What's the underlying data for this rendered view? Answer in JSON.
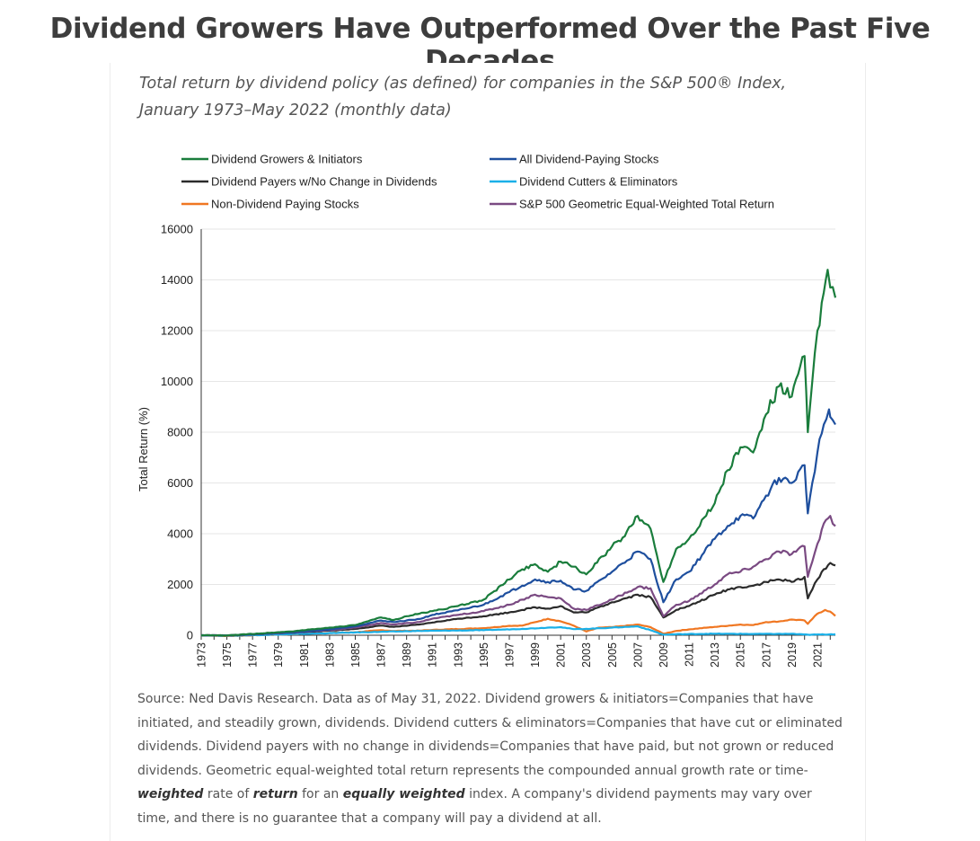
{
  "headline": "Dividend Growers Have Outperformed Over the Past Five Decades",
  "subtitle": "Total return by dividend policy (as defined) for companies in the S&P 500® Index, January 1973–May 2022 (monthly data)",
  "chart_data": {
    "type": "line",
    "title": "",
    "xlabel": "",
    "ylabel": "Total Return (%)",
    "xlim": [
      1973,
      2022.4
    ],
    "ylim": [
      0,
      16000
    ],
    "y_ticks": [
      0,
      2000,
      4000,
      6000,
      8000,
      10000,
      12000,
      14000,
      16000
    ],
    "x_ticks": [
      1973,
      1975,
      1977,
      1979,
      1981,
      1983,
      1985,
      1987,
      1989,
      1991,
      1993,
      1995,
      1997,
      1999,
      2001,
      2003,
      2005,
      2007,
      2009,
      2011,
      2013,
      2015,
      2017,
      2019,
      2021
    ],
    "grid": "horizontal",
    "legend": "top",
    "series": [
      {
        "name": "Non-Dividend Paying Stocks",
        "color": "#f07722",
        "points": [
          [
            1973,
            0
          ],
          [
            1975,
            -30
          ],
          [
            1980,
            40
          ],
          [
            1985,
            120
          ],
          [
            1987,
            200
          ],
          [
            1988,
            170
          ],
          [
            1990,
            180
          ],
          [
            1991,
            210
          ],
          [
            1995,
            280
          ],
          [
            1997,
            370
          ],
          [
            1998,
            380
          ],
          [
            2000,
            650
          ],
          [
            2001,
            550
          ],
          [
            2002,
            380
          ],
          [
            2003,
            150
          ],
          [
            2004,
            300
          ],
          [
            2005,
            320
          ],
          [
            2007,
            420
          ],
          [
            2008,
            320
          ],
          [
            2009,
            60
          ],
          [
            2010,
            170
          ],
          [
            2011,
            230
          ],
          [
            2013,
            330
          ],
          [
            2015,
            420
          ],
          [
            2016,
            400
          ],
          [
            2017,
            520
          ],
          [
            2018,
            540
          ],
          [
            2019,
            620
          ],
          [
            2020,
            580
          ],
          [
            2020.25,
            450
          ],
          [
            2020.6,
            640
          ],
          [
            2021,
            850
          ],
          [
            2021.6,
            1000
          ],
          [
            2022,
            930
          ],
          [
            2022.4,
            760
          ]
        ]
      },
      {
        "name": "Dividend Cutters & Eliminators",
        "color": "#1ab0e8",
        "points": [
          [
            1973,
            0
          ],
          [
            1975,
            -20
          ],
          [
            1980,
            40
          ],
          [
            1985,
            110
          ],
          [
            1990,
            170
          ],
          [
            1995,
            200
          ],
          [
            1998,
            250
          ],
          [
            2000,
            300
          ],
          [
            2001,
            320
          ],
          [
            2002,
            240
          ],
          [
            2003,
            250
          ],
          [
            2005,
            300
          ],
          [
            2007,
            350
          ],
          [
            2008,
            200
          ],
          [
            2009,
            20
          ],
          [
            2010,
            40
          ],
          [
            2013,
            60
          ],
          [
            2016,
            50
          ],
          [
            2019,
            55
          ],
          [
            2020.25,
            20
          ],
          [
            2022.4,
            40
          ]
        ]
      },
      {
        "name": "Dividend Payers w/No Change in Dividends",
        "color": "#2b2b2b",
        "points": [
          [
            1973,
            0
          ],
          [
            1975,
            -10
          ],
          [
            1980,
            100
          ],
          [
            1983,
            180
          ],
          [
            1985,
            250
          ],
          [
            1987,
            380
          ],
          [
            1988,
            330
          ],
          [
            1990,
            420
          ],
          [
            1991,
            500
          ],
          [
            1993,
            650
          ],
          [
            1995,
            750
          ],
          [
            1997,
            900
          ],
          [
            1998,
            1000
          ],
          [
            1999,
            1100
          ],
          [
            2000,
            1050
          ],
          [
            2001,
            1150
          ],
          [
            2002,
            900
          ],
          [
            2003,
            900
          ],
          [
            2005,
            1300
          ],
          [
            2007,
            1600
          ],
          [
            2008,
            1500
          ],
          [
            2009,
            700
          ],
          [
            2010,
            1000
          ],
          [
            2011,
            1150
          ],
          [
            2013,
            1600
          ],
          [
            2014,
            1800
          ],
          [
            2015,
            1900
          ],
          [
            2016,
            1950
          ],
          [
            2017,
            2100
          ],
          [
            2018,
            2200
          ],
          [
            2019,
            2100
          ],
          [
            2020,
            2300
          ],
          [
            2020.25,
            1450
          ],
          [
            2020.6,
            1800
          ],
          [
            2021,
            2200
          ],
          [
            2021.5,
            2600
          ],
          [
            2022,
            2850
          ],
          [
            2022.4,
            2750
          ]
        ]
      },
      {
        "name": "S&P 500 Geometric Equal-Weighted Total Return",
        "color": "#7a4a82",
        "points": [
          [
            1973,
            0
          ],
          [
            1975,
            -10
          ],
          [
            1980,
            100
          ],
          [
            1983,
            200
          ],
          [
            1985,
            300
          ],
          [
            1987,
            480
          ],
          [
            1988,
            420
          ],
          [
            1990,
            520
          ],
          [
            1991,
            650
          ],
          [
            1993,
            800
          ],
          [
            1995,
            950
          ],
          [
            1997,
            1200
          ],
          [
            1998,
            1400
          ],
          [
            1999,
            1600
          ],
          [
            2000,
            1500
          ],
          [
            2001,
            1450
          ],
          [
            2002,
            1050
          ],
          [
            2003,
            1000
          ],
          [
            2005,
            1400
          ],
          [
            2007,
            1900
          ],
          [
            2008,
            1850
          ],
          [
            2009,
            750
          ],
          [
            2010,
            1200
          ],
          [
            2011,
            1350
          ],
          [
            2013,
            2000
          ],
          [
            2014,
            2400
          ],
          [
            2015,
            2500
          ],
          [
            2016,
            2700
          ],
          [
            2017,
            3000
          ],
          [
            2018,
            3300
          ],
          [
            2019,
            3200
          ],
          [
            2020,
            3500
          ],
          [
            2020.25,
            2300
          ],
          [
            2020.6,
            2900
          ],
          [
            2021,
            3600
          ],
          [
            2021.5,
            4400
          ],
          [
            2022,
            4700
          ],
          [
            2022.4,
            4300
          ]
        ]
      },
      {
        "name": "All Dividend-Paying Stocks",
        "color": "#1e4f9e",
        "points": [
          [
            1973,
            0
          ],
          [
            1975,
            -10
          ],
          [
            1980,
            110
          ],
          [
            1983,
            230
          ],
          [
            1985,
            350
          ],
          [
            1987,
            580
          ],
          [
            1988,
            520
          ],
          [
            1990,
            640
          ],
          [
            1991,
            800
          ],
          [
            1993,
            980
          ],
          [
            1995,
            1200
          ],
          [
            1997,
            1700
          ],
          [
            1998,
            1950
          ],
          [
            1999,
            2200
          ],
          [
            2000,
            2100
          ],
          [
            2001,
            2150
          ],
          [
            2002,
            1800
          ],
          [
            2003,
            1750
          ],
          [
            2005,
            2500
          ],
          [
            2007,
            3300
          ],
          [
            2008,
            3000
          ],
          [
            2009,
            1300
          ],
          [
            2010,
            2200
          ],
          [
            2011,
            2500
          ],
          [
            2013,
            3800
          ],
          [
            2014,
            4300
          ],
          [
            2015,
            4700
          ],
          [
            2016,
            4600
          ],
          [
            2017,
            5500
          ],
          [
            2018,
            6200
          ],
          [
            2019,
            6000
          ],
          [
            2020,
            6700
          ],
          [
            2020.25,
            4800
          ],
          [
            2020.6,
            6000
          ],
          [
            2021,
            7200
          ],
          [
            2021.5,
            8300
          ],
          [
            2021.9,
            8900
          ],
          [
            2022,
            8600
          ],
          [
            2022.4,
            8300
          ]
        ]
      },
      {
        "name": "Dividend Growers & Initiators",
        "color": "#1a7d3c",
        "points": [
          [
            1973,
            0
          ],
          [
            1975,
            -10
          ],
          [
            1980,
            150
          ],
          [
            1983,
            300
          ],
          [
            1985,
            400
          ],
          [
            1986,
            550
          ],
          [
            1987,
            700
          ],
          [
            1988,
            600
          ],
          [
            1989,
            750
          ],
          [
            1990,
            850
          ],
          [
            1991,
            950
          ],
          [
            1993,
            1150
          ],
          [
            1995,
            1400
          ],
          [
            1997,
            2200
          ],
          [
            1998,
            2600
          ],
          [
            1999,
            2800
          ],
          [
            2000,
            2500
          ],
          [
            2001,
            2900
          ],
          [
            2002,
            2700
          ],
          [
            2003,
            2400
          ],
          [
            2005,
            3500
          ],
          [
            2006,
            3900
          ],
          [
            2007,
            4700
          ],
          [
            2008,
            4200
          ],
          [
            2009,
            2100
          ],
          [
            2010,
            3400
          ],
          [
            2011,
            3800
          ],
          [
            2013,
            5200
          ],
          [
            2014,
            6500
          ],
          [
            2015,
            7400
          ],
          [
            2016,
            7200
          ],
          [
            2017,
            8700
          ],
          [
            2018,
            9800
          ],
          [
            2019,
            9400
          ],
          [
            2020,
            11000
          ],
          [
            2020.25,
            8000
          ],
          [
            2020.6,
            10000
          ],
          [
            2021,
            12000
          ],
          [
            2021.5,
            13500
          ],
          [
            2021.8,
            14400
          ],
          [
            2022,
            13700
          ],
          [
            2022.4,
            13300
          ]
        ]
      }
    ]
  },
  "legend": {
    "col1": [
      "Dividend Growers & Initiators",
      "Dividend Payers w/No Change in Dividends",
      "Non-Dividend Paying Stocks"
    ],
    "col2": [
      "All Dividend-Paying Stocks",
      "Dividend Cutters & Eliminators",
      "S&P 500 Geometric Equal-Weighted Total Return"
    ]
  },
  "source": {
    "p1": "Source: Ned Davis Research. Data as of May 31, 2022. Dividend growers & initiators=Companies that have initiated, and steadily grown, dividends. Dividend cutters & eliminators=Companies that have cut or eliminated dividends. Dividend payers with no change in dividends=Companies that have paid, but not grown or reduced dividends. Geometric equal-weighted total return represents the compounded annual growth rate or time-",
    "w1": "weighted",
    "t2": "rate of",
    "w2": "return",
    "t3": "for an",
    "w3": "equally weighted",
    "t4": "index.  A company's dividend payments may vary over time, and there is no guarantee that a company will pay a dividend at all."
  }
}
